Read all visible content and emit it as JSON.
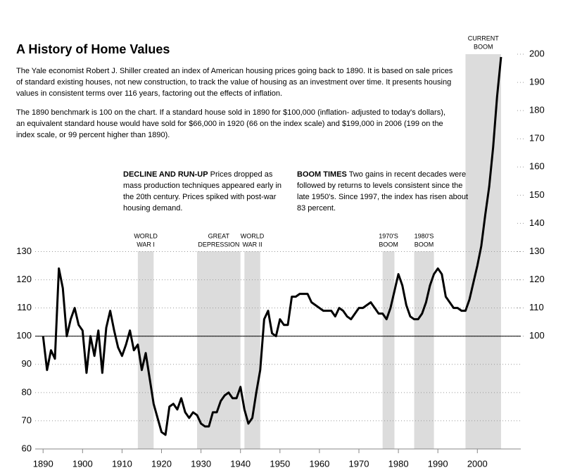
{
  "chart_data": {
    "type": "line",
    "title": "A History of Home Values",
    "subtitle": [
      "The Yale economist Robert J. Shiller created an index of American housing prices going back to 1890.  It is based on sale prices of standard existing houses, not new construction, to track the value of housing as an investment over time.  It presents housing values in consistent terms over 116 years, factoring out the effects of inflation.",
      "The 1890 benchmark is 100 on the chart.  If a standard house sold in 1890 for $100,000 (inflation- adjusted to today's dollars), an equivalent standard house would have sold for $66,000 in 1920 (66 on the index scale) and $199,000 in 2006 (199 on the index scale, or 99 percent higher than 1890)."
    ],
    "annotations": [
      {
        "heading": "DECLINE AND RUN-UP",
        "text": "Prices dropped as mass production techniques appeared early in the 20th century.  Prices spiked with post-war housing demand."
      },
      {
        "heading": "BOOM TIMES",
        "text": "Two gains in recent decades were followed by returns to levels consistent since the late 1950's.  Since 1997, the index has risen about 83 percent."
      }
    ],
    "periods": [
      {
        "label": [
          "WORLD",
          "WAR I"
        ],
        "start": 1914,
        "end": 1918
      },
      {
        "label": [
          "GREAT",
          "DEPRESSION"
        ],
        "start": 1929,
        "end": 1940
      },
      {
        "label": [
          "WORLD",
          "WAR II"
        ],
        "start": 1941,
        "end": 1945
      },
      {
        "label": [
          "1970'S",
          "BOOM"
        ],
        "start": 1976,
        "end": 1979
      },
      {
        "label": [
          "1980'S",
          "BOOM"
        ],
        "start": 1984,
        "end": 1989
      },
      {
        "label": [
          "CURRENT",
          "BOOM"
        ],
        "start": 1997,
        "end": 2006
      }
    ],
    "reference_line": 100,
    "x": [
      1890,
      1891,
      1892,
      1893,
      1894,
      1895,
      1896,
      1897,
      1898,
      1899,
      1900,
      1901,
      1902,
      1903,
      1904,
      1905,
      1906,
      1907,
      1908,
      1909,
      1910,
      1911,
      1912,
      1913,
      1914,
      1915,
      1916,
      1917,
      1918,
      1919,
      1920,
      1921,
      1922,
      1923,
      1924,
      1925,
      1926,
      1927,
      1928,
      1929,
      1930,
      1931,
      1932,
      1933,
      1934,
      1935,
      1936,
      1937,
      1938,
      1939,
      1940,
      1941,
      1942,
      1943,
      1944,
      1945,
      1946,
      1947,
      1948,
      1949,
      1950,
      1951,
      1952,
      1953,
      1954,
      1955,
      1956,
      1957,
      1958,
      1959,
      1960,
      1961,
      1962,
      1963,
      1964,
      1965,
      1966,
      1967,
      1968,
      1969,
      1970,
      1971,
      1972,
      1973,
      1974,
      1975,
      1976,
      1977,
      1978,
      1979,
      1980,
      1981,
      1982,
      1983,
      1984,
      1985,
      1986,
      1987,
      1988,
      1989,
      1990,
      1991,
      1992,
      1993,
      1994,
      1995,
      1996,
      1997,
      1998,
      1999,
      2000,
      2001,
      2002,
      2003,
      2004,
      2005,
      2006
    ],
    "series": [
      {
        "color": "#000000",
        "values": [
          100,
          88,
          95,
          92,
          124,
          117,
          100,
          106,
          110,
          104,
          102,
          87,
          100,
          93,
          102,
          87,
          103,
          109,
          102,
          96,
          93,
          97,
          102,
          95,
          97,
          88,
          94,
          85,
          76,
          71,
          66,
          65,
          75,
          76,
          74,
          78,
          73,
          71,
          73,
          72,
          69,
          68,
          68,
          73,
          73,
          77,
          79,
          80,
          78,
          78,
          82,
          74,
          69,
          71,
          80,
          88,
          106,
          109,
          101,
          100,
          106,
          104,
          104,
          114,
          114,
          115,
          115,
          115,
          112,
          111,
          110,
          109,
          109,
          109,
          107,
          110,
          109,
          107,
          106,
          108,
          110,
          110,
          111,
          112,
          110,
          108,
          108,
          106,
          110,
          116,
          122,
          118,
          111,
          107,
          106,
          106,
          108,
          112,
          118,
          122,
          124,
          122,
          114,
          112,
          110,
          110,
          109,
          109,
          113,
          119,
          125,
          132,
          143,
          153,
          167,
          185,
          199
        ]
      }
    ],
    "xlim": [
      1888,
      2011
    ],
    "xticks": [
      1890,
      1900,
      1910,
      1920,
      1930,
      1940,
      1950,
      1960,
      1970,
      1980,
      1990,
      2000
    ],
    "ylim": [
      60,
      200
    ],
    "yticks": [
      60,
      70,
      80,
      90,
      100,
      110,
      120,
      130
    ],
    "y2lim": [
      60,
      200
    ],
    "y2ticks": [
      100,
      110,
      120,
      130,
      140,
      150,
      160,
      170,
      180,
      190,
      200
    ],
    "grid": true
  }
}
